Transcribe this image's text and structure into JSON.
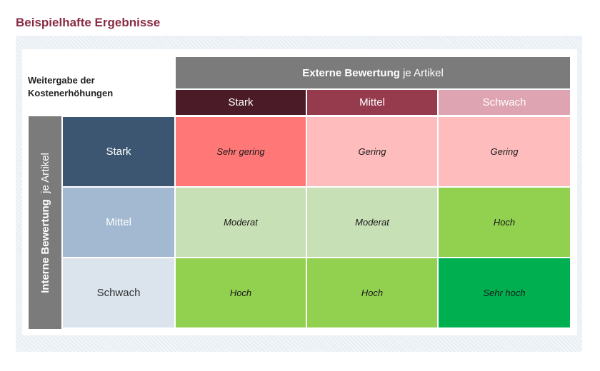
{
  "title": "Beispielhafte Ergebnisse",
  "corner_label": {
    "line1": "Weitergabe der",
    "line2": "Kostenerhöhungen"
  },
  "external_header": {
    "bold": "Externe Bewertung",
    "rest": " je Artikel"
  },
  "internal_header": {
    "bold": "Interne Bewertung",
    "rest": " je Artikel"
  },
  "columns": [
    "Stark",
    "Mittel",
    "Schwach"
  ],
  "rows": [
    {
      "label": "Stark",
      "cells": [
        "Sehr gering",
        "Gering",
        "Gering"
      ]
    },
    {
      "label": "Mittel",
      "cells": [
        "Moderat",
        "Moderat",
        "Hoch"
      ]
    },
    {
      "label": "Schwach",
      "cells": [
        "Hoch",
        "Hoch",
        "Sehr hoch"
      ]
    }
  ],
  "colors": {
    "title": "#8a2b45",
    "header_gray": "#7b7b7b",
    "col_stark": "#4b1b27",
    "col_mittel": "#963a4d",
    "col_schwach": "#dea4b1",
    "row_stark": "#3c5672",
    "row_mittel": "#a2b9d1",
    "row_schwach": "#dbe3ed",
    "sehr_gering": "#ff7777",
    "gering": "#ffbcbd",
    "moderat": "#c8e0b5",
    "hoch": "#92d050",
    "sehr_hoch": "#00b050"
  }
}
